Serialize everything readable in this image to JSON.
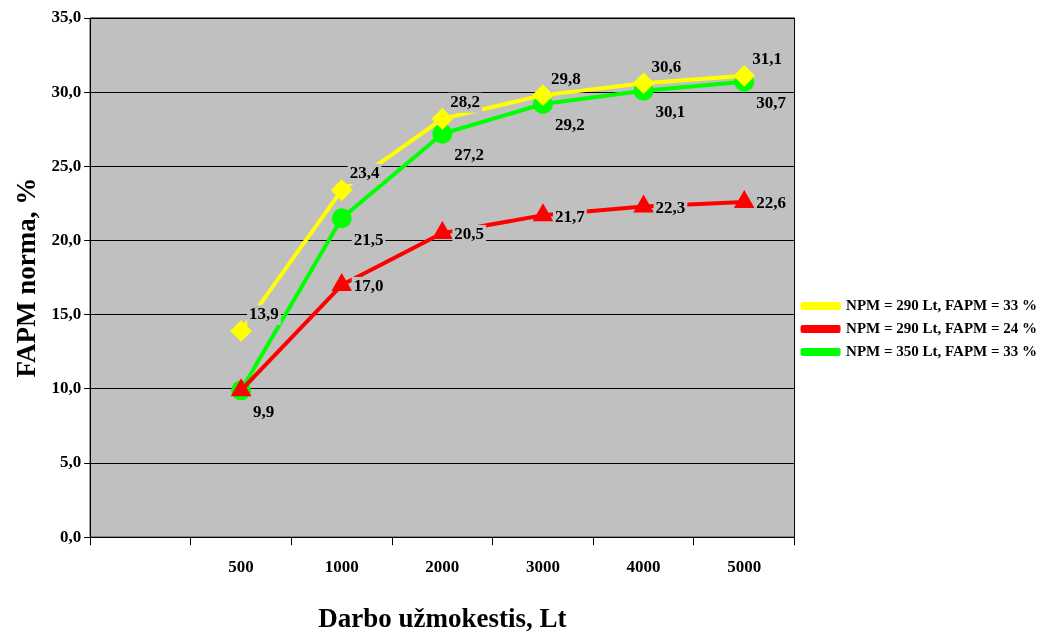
{
  "chart_data": {
    "type": "line",
    "xlabel": "Darbo užmokestis, Lt",
    "ylabel": "FAPM norma, %",
    "categories": [
      null,
      "500",
      "1000",
      "2000",
      "3000",
      "4000",
      "5000"
    ],
    "series": [
      {
        "name": "NPM = 290 Lt, FAPM = 33 %",
        "color": "#ffff00",
        "marker": "diamond",
        "values": [
          null,
          13.9,
          23.4,
          28.2,
          29.8,
          30.6,
          31.1
        ],
        "value_labels": [
          null,
          "13,9",
          "23,4",
          "28,2",
          "29,8",
          "30,6",
          "31,1"
        ]
      },
      {
        "name": "NPM = 290 Lt, FAPM = 24 %",
        "color": "#ff0000",
        "marker": "triangle",
        "values": [
          null,
          9.9,
          17.0,
          20.5,
          21.7,
          22.3,
          22.6
        ],
        "value_labels": [
          null,
          null,
          "17,0",
          "20,5",
          "21,7",
          "22,3",
          "22,6"
        ]
      },
      {
        "name": "NPM = 350 Lt, FAPM = 33 %",
        "color": "#00ff00",
        "marker": "circle",
        "values": [
          null,
          9.9,
          21.5,
          27.2,
          29.2,
          30.1,
          30.7
        ],
        "value_labels": [
          null,
          "9,9",
          "21,5",
          "27,2",
          "29,2",
          "30,1",
          "30,7"
        ]
      }
    ],
    "ylim": [
      0,
      35
    ],
    "yticks": [
      {
        "value": 0,
        "label": "0,0"
      },
      {
        "value": 5,
        "label": "5,0"
      },
      {
        "value": 10,
        "label": "10,0"
      },
      {
        "value": 15,
        "label": "15,0"
      },
      {
        "value": 20,
        "label": "20,0"
      },
      {
        "value": 25,
        "label": "25,0"
      },
      {
        "value": 30,
        "label": "30,0"
      },
      {
        "value": 35,
        "label": "35,0"
      }
    ],
    "grid": "y",
    "legend": "right"
  }
}
